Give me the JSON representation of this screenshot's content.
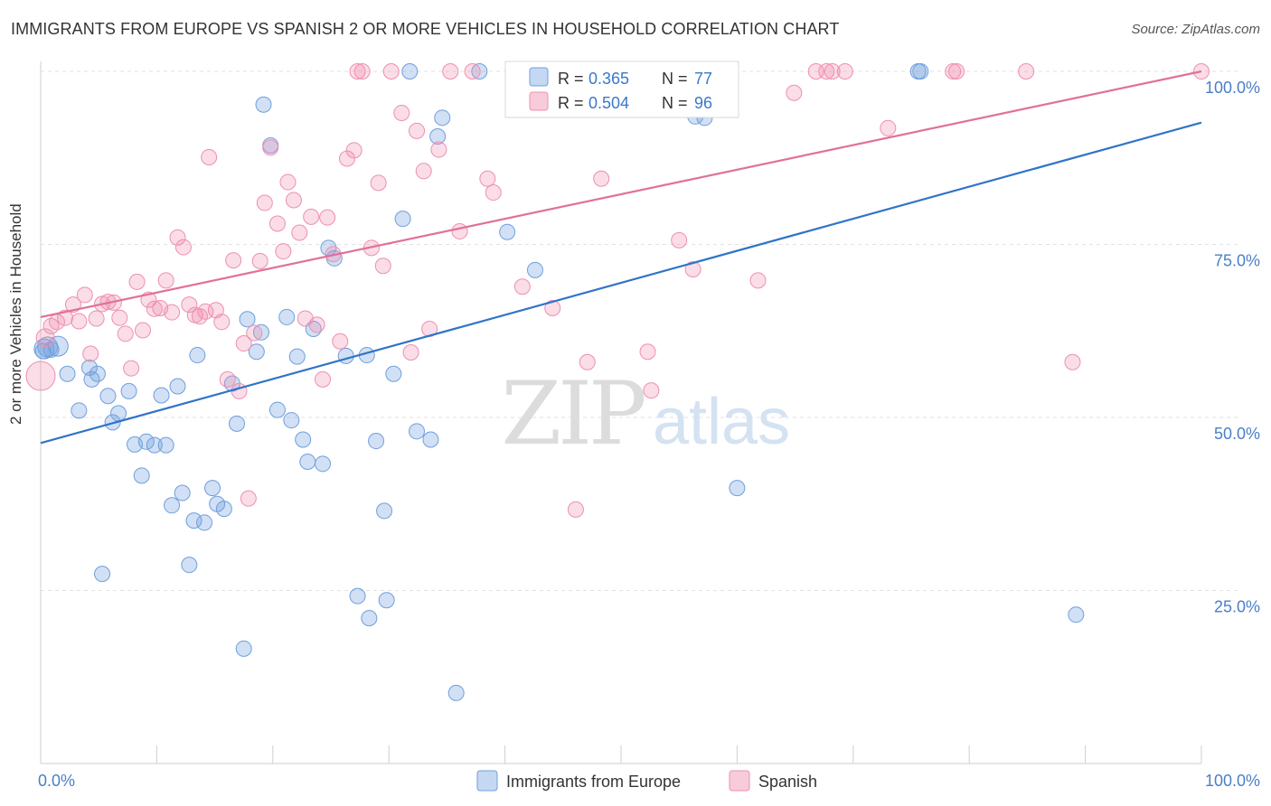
{
  "title": "IMMIGRANTS FROM EUROPE VS SPANISH 2 OR MORE VEHICLES IN HOUSEHOLD CORRELATION CHART",
  "source": "Source: ZipAtlas.com",
  "watermark": {
    "zip": "ZIP",
    "atlas": "atlas"
  },
  "colors": {
    "blue": "#6f9fdd",
    "blue_line": "#2f74c8",
    "pink": "#ee8fb0",
    "pink_line": "#e0709a",
    "tick_label": "#4a7fc8"
  },
  "chart_data": {
    "type": "scatter",
    "xlabel": "",
    "ylabel": "2 or more Vehicles in Household",
    "xlim": [
      0,
      100
    ],
    "ylim": [
      0,
      100
    ],
    "x_tick_labels": [
      {
        "value": 0,
        "label": "0.0%"
      },
      {
        "value": 100,
        "label": "100.0%"
      }
    ],
    "y_tick_labels": [
      {
        "value": 25,
        "label": "25.0%"
      },
      {
        "value": 50,
        "label": "50.0%"
      },
      {
        "value": 75,
        "label": "75.0%"
      },
      {
        "value": 100,
        "label": "100.0%"
      }
    ],
    "grid": true,
    "legend": {
      "placement": "top-center",
      "entries": [
        {
          "r_label": "R =",
          "r_value": "0.365",
          "n_label": "N =",
          "n_value": "77"
        },
        {
          "r_label": "R =",
          "r_value": "0.504",
          "n_label": "N =",
          "n_value": "96"
        }
      ]
    },
    "bottom_legend": [
      "Immigrants from Europe",
      "Spanish"
    ],
    "series": [
      {
        "name": "Immigrants from Europe",
        "color": "#6f9fdd",
        "trend": [
          [
            0,
            46.3
          ],
          [
            100,
            92.6
          ]
        ],
        "points": [
          [
            0.3,
            59.9
          ],
          [
            0.6,
            60.2
          ],
          [
            1.5,
            60.3
          ],
          [
            2.3,
            56.3
          ],
          [
            3.3,
            51
          ],
          [
            4.2,
            57.2
          ],
          [
            4.4,
            55.5
          ],
          [
            4.9,
            56.3
          ],
          [
            5.3,
            27.4
          ],
          [
            5.8,
            53.1
          ],
          [
            6.2,
            49.3
          ],
          [
            6.7,
            50.6
          ],
          [
            7.6,
            53.8
          ],
          [
            8.1,
            46.1
          ],
          [
            8.7,
            41.6
          ],
          [
            9.1,
            46.5
          ],
          [
            9.8,
            46
          ],
          [
            10.4,
            53.2
          ],
          [
            10.8,
            46
          ],
          [
            11.3,
            37.3
          ],
          [
            11.8,
            54.5
          ],
          [
            12.2,
            39.1
          ],
          [
            12.8,
            28.7
          ],
          [
            13.2,
            35.1
          ],
          [
            13.5,
            59
          ],
          [
            14.1,
            34.8
          ],
          [
            14.8,
            39.8
          ],
          [
            15.2,
            37.5
          ],
          [
            15.8,
            36.8
          ],
          [
            16.5,
            54.9
          ],
          [
            16.9,
            49.1
          ],
          [
            17.5,
            16.6
          ],
          [
            17.8,
            64.2
          ],
          [
            18.6,
            59.5
          ],
          [
            19,
            62.3
          ],
          [
            19.2,
            95.2
          ],
          [
            19.8,
            89.3
          ],
          [
            20.4,
            51.1
          ],
          [
            21.2,
            64.5
          ],
          [
            21.6,
            49.6
          ],
          [
            22.1,
            58.8
          ],
          [
            22.6,
            46.8
          ],
          [
            23,
            43.6
          ],
          [
            23.5,
            62.8
          ],
          [
            24.3,
            43.3
          ],
          [
            24.8,
            74.5
          ],
          [
            25.3,
            73
          ],
          [
            26.3,
            58.9
          ],
          [
            27.3,
            24.2
          ],
          [
            28.1,
            59
          ],
          [
            28.3,
            21
          ],
          [
            28.9,
            46.6
          ],
          [
            29.6,
            36.5
          ],
          [
            29.8,
            23.6
          ],
          [
            30.4,
            56.3
          ],
          [
            31.2,
            78.7
          ],
          [
            31.8,
            100
          ],
          [
            32.4,
            48
          ],
          [
            33.6,
            46.8
          ],
          [
            34.2,
            90.6
          ],
          [
            34.6,
            93.3
          ],
          [
            35.8,
            10.2
          ],
          [
            37.8,
            100
          ],
          [
            40.2,
            76.8
          ],
          [
            42.6,
            71.3
          ],
          [
            46.6,
            100
          ],
          [
            47,
            100
          ],
          [
            47.5,
            100
          ],
          [
            53.3,
            100
          ],
          [
            56.4,
            93.5
          ],
          [
            57.2,
            93.3
          ],
          [
            60,
            39.8
          ],
          [
            75.6,
            100
          ],
          [
            75.8,
            100
          ],
          [
            89.2,
            21.5
          ],
          [
            0.2,
            59.6
          ],
          [
            0.9,
            59.8
          ]
        ]
      },
      {
        "name": "Spanish",
        "color": "#ee8fb0",
        "trend": [
          [
            0,
            64.5
          ],
          [
            100,
            100
          ]
        ],
        "points": [
          [
            0,
            56
          ],
          [
            0.4,
            61.5
          ],
          [
            0.9,
            63.2
          ],
          [
            1.4,
            63.8
          ],
          [
            2.1,
            64.4
          ],
          [
            2.8,
            66.3
          ],
          [
            3.3,
            63.9
          ],
          [
            3.8,
            67.7
          ],
          [
            4.3,
            59.2
          ],
          [
            4.8,
            64.3
          ],
          [
            5.3,
            66.4
          ],
          [
            5.8,
            66.7
          ],
          [
            6.3,
            66.6
          ],
          [
            6.8,
            64.4
          ],
          [
            7.3,
            62.1
          ],
          [
            7.8,
            57.1
          ],
          [
            8.3,
            69.6
          ],
          [
            8.8,
            62.6
          ],
          [
            9.3,
            67
          ],
          [
            9.8,
            65.7
          ],
          [
            10.3,
            65.8
          ],
          [
            10.8,
            69.8
          ],
          [
            11.3,
            65.2
          ],
          [
            11.8,
            76
          ],
          [
            12.3,
            74.6
          ],
          [
            12.8,
            66.3
          ],
          [
            13.3,
            64.8
          ],
          [
            13.7,
            64.6
          ],
          [
            14.2,
            65.3
          ],
          [
            14.5,
            87.6
          ],
          [
            15.1,
            65.5
          ],
          [
            15.6,
            63.8
          ],
          [
            16.1,
            55.5
          ],
          [
            16.6,
            72.7
          ],
          [
            17.1,
            53.8
          ],
          [
            17.5,
            60.7
          ],
          [
            17.9,
            38.3
          ],
          [
            18.4,
            62.2
          ],
          [
            18.9,
            72.6
          ],
          [
            19.3,
            81
          ],
          [
            19.8,
            89
          ],
          [
            20.4,
            78
          ],
          [
            20.9,
            74
          ],
          [
            21.3,
            84
          ],
          [
            21.8,
            81.4
          ],
          [
            22.3,
            76.7
          ],
          [
            22.8,
            64.3
          ],
          [
            23.3,
            79
          ],
          [
            23.8,
            63.4
          ],
          [
            24.3,
            55.5
          ],
          [
            24.7,
            78.9
          ],
          [
            25.2,
            73.6
          ],
          [
            25.8,
            61
          ],
          [
            26.4,
            87.4
          ],
          [
            27,
            88.6
          ],
          [
            27.3,
            100
          ],
          [
            27.7,
            100
          ],
          [
            28.5,
            74.5
          ],
          [
            29.1,
            83.9
          ],
          [
            29.5,
            71.9
          ],
          [
            30.2,
            100
          ],
          [
            31.1,
            94
          ],
          [
            31.9,
            59.4
          ],
          [
            32.4,
            91.4
          ],
          [
            33,
            85.6
          ],
          [
            33.5,
            62.8
          ],
          [
            34.3,
            88.7
          ],
          [
            35.3,
            100
          ],
          [
            36.1,
            76.9
          ],
          [
            37.2,
            100
          ],
          [
            38.5,
            84.5
          ],
          [
            39,
            82.5
          ],
          [
            41.5,
            68.9
          ],
          [
            42.8,
            100
          ],
          [
            44.1,
            65.8
          ],
          [
            45.3,
            100
          ],
          [
            46.1,
            36.7
          ],
          [
            47.1,
            58
          ],
          [
            48.3,
            84.5
          ],
          [
            51.5,
            100
          ],
          [
            52.3,
            59.5
          ],
          [
            52.6,
            53.9
          ],
          [
            55,
            75.6
          ],
          [
            56.2,
            71.4
          ],
          [
            61.8,
            69.8
          ],
          [
            64.9,
            96.9
          ],
          [
            66.8,
            100
          ],
          [
            67.7,
            100
          ],
          [
            68.2,
            100
          ],
          [
            69.3,
            100
          ],
          [
            73,
            91.8
          ],
          [
            78.6,
            100
          ],
          [
            78.9,
            100
          ],
          [
            84.9,
            100
          ],
          [
            88.9,
            58
          ],
          [
            100,
            100
          ]
        ]
      }
    ]
  }
}
